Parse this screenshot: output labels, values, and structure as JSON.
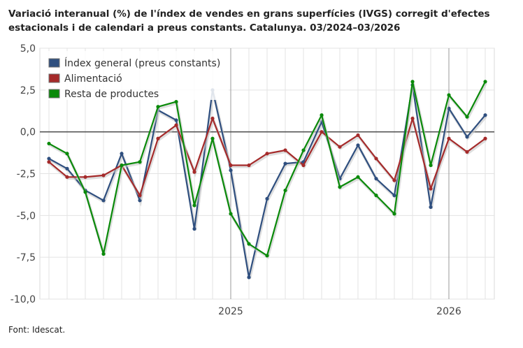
{
  "title": "Variació interanual (%) de l'índex de vendes en grans superfícies (IVGS) corregit d'efectes estacionals i de calendari a preus constants. Catalunya. 03/2024–03/2026",
  "source": "Font: Idescat.",
  "chart_data": {
    "type": "line",
    "title": "Variació interanual (%) de l'índex de vendes en grans superfícies (IVGS) corregit d'efectes estacionals i de calendari a preus constants. Catalunya. 03/2024–03/2026",
    "x": [
      "2024-03",
      "2024-04",
      "2024-05",
      "2024-06",
      "2024-07",
      "2024-08",
      "2024-09",
      "2024-10",
      "2024-11",
      "2024-12",
      "2025-01",
      "2025-02",
      "2025-03",
      "2025-04",
      "2025-05",
      "2025-06",
      "2025-07",
      "2025-08",
      "2025-09",
      "2025-10",
      "2025-11",
      "2025-12",
      "2026-01",
      "2026-02",
      "2026-03"
    ],
    "x_tick_labels": [
      "2025",
      "2026"
    ],
    "y_tick_labels": [
      "5,0",
      "2,5",
      "0,0",
      "-2,5",
      "-5,0",
      "-7,5",
      "-10,0"
    ],
    "ylim": [
      -10,
      5
    ],
    "grid": true,
    "legend_position": "top-left",
    "series": [
      {
        "name": "Índex general (preus constants)",
        "color": "#2f4f7f",
        "values": [
          -1.6,
          -2.2,
          -3.5,
          -4.1,
          -1.3,
          -4.1,
          1.3,
          0.7,
          -5.8,
          2.5,
          -2.3,
          -8.7,
          -4.0,
          -1.9,
          -1.8,
          0.6,
          -2.8,
          -0.8,
          -2.8,
          -3.8,
          2.8,
          -4.5,
          1.4,
          -0.3,
          1.0
        ]
      },
      {
        "name": "Alimentació",
        "color": "#a52a2a",
        "values": [
          -1.8,
          -2.7,
          -2.7,
          -2.6,
          -2.0,
          -3.8,
          -0.4,
          0.4,
          -2.4,
          0.8,
          -2.0,
          -2.0,
          -1.3,
          -1.1,
          -2.0,
          0.0,
          -0.9,
          -0.2,
          -1.6,
          -2.9,
          0.8,
          -3.4,
          -0.4,
          -1.2,
          -0.4
        ]
      },
      {
        "name": "Resta de productes",
        "color": "#0a8a0a",
        "values": [
          -0.7,
          -1.3,
          -3.6,
          -7.3,
          -2.0,
          -1.8,
          1.5,
          1.8,
          -4.4,
          -0.4,
          -4.9,
          -6.7,
          -7.4,
          -3.5,
          -1.1,
          1.0,
          -3.3,
          -2.7,
          -3.8,
          -4.9,
          3.0,
          -2.0,
          2.2,
          0.9,
          3.0
        ]
      }
    ]
  }
}
